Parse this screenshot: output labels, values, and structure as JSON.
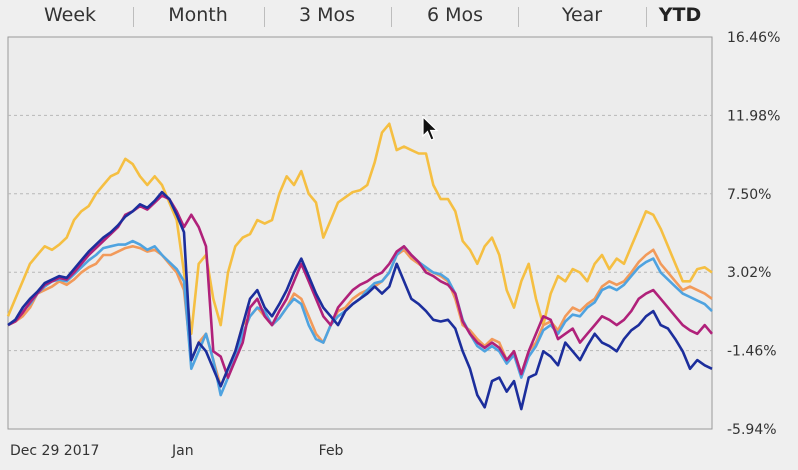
{
  "tabs": [
    {
      "label": "Week",
      "active": false
    },
    {
      "label": "Month",
      "active": false
    },
    {
      "label": "3 Mos",
      "active": false
    },
    {
      "label": "6 Mos",
      "active": false
    },
    {
      "label": "Year",
      "active": false
    },
    {
      "label": "YTD",
      "active": true
    }
  ],
  "chart_data": {
    "type": "line",
    "ylim": [
      -5.94,
      16.46
    ],
    "yticks": [
      "16.46%",
      "11.98%",
      "7.50%",
      "3.02%",
      "-1.46%",
      "-5.94%"
    ],
    "ytick_values": [
      16.46,
      11.98,
      7.5,
      3.02,
      -1.46,
      -5.94
    ],
    "xticks": [
      "Dec 29 2017",
      "Jan",
      "Feb"
    ],
    "xtick_index": [
      0,
      24,
      44
    ],
    "grid": "horizontal dashed",
    "series": [
      {
        "color": "#f5bf42",
        "values": [
          0.5,
          1.5,
          2.5,
          3.5,
          4,
          4.5,
          4.3,
          4.6,
          5,
          6,
          6.5,
          6.8,
          7.5,
          8,
          8.5,
          8.7,
          9.5,
          9.2,
          8.5,
          8,
          8.5,
          8,
          7,
          6,
          3,
          -0.5,
          3.5,
          4,
          1.5,
          0,
          3,
          4.5,
          5,
          5.2,
          6,
          5.8,
          6,
          7.5,
          8.5,
          8,
          8.8,
          7.5,
          7,
          5,
          6,
          7,
          7.3,
          7.6,
          7.7,
          8,
          9.3,
          11,
          11.5,
          10,
          10.2,
          10,
          9.8,
          9.8,
          8,
          7.2,
          7.2,
          6.5,
          4.8,
          4.3,
          3.5,
          4.5,
          5,
          4,
          2,
          1,
          2.5,
          3.5,
          1.5,
          0,
          1.8,
          2.8,
          2.5,
          3.2,
          3,
          2.5,
          3.5,
          4,
          3.2,
          3.8,
          3.5,
          4.5,
          5.5,
          6.5,
          6.3,
          5.5,
          4.5,
          3.5,
          2.5,
          2.5,
          3.2,
          3.3,
          3
        ],
        "smooth": false
      },
      {
        "color": "#f29a5a",
        "values": [
          0,
          0.2,
          0.5,
          1,
          1.8,
          2,
          2.2,
          2.5,
          2.3,
          2.6,
          3,
          3.3,
          3.5,
          4,
          4,
          4.2,
          4.4,
          4.5,
          4.4,
          4.2,
          4.3,
          4,
          3.5,
          3,
          2,
          -2,
          -1,
          -0.5,
          -2,
          -3.5,
          -2.5,
          -1.5,
          0,
          0.5,
          1,
          0.5,
          0,
          0.4,
          1,
          1.8,
          1.5,
          0.5,
          -0.5,
          -1,
          0,
          0.8,
          1,
          1.5,
          1.8,
          2,
          2.2,
          2.5,
          3,
          4,
          4.3,
          3.8,
          3.5,
          3.2,
          3,
          2.8,
          2.5,
          1.5,
          0,
          -0.3,
          -0.8,
          -1.2,
          -0.8,
          -1,
          -2,
          -1.5,
          -2.8,
          -1.5,
          -1,
          0,
          0.2,
          -0.3,
          0.5,
          1,
          0.8,
          1.2,
          1.5,
          2.2,
          2.5,
          2.3,
          2.5,
          3,
          3.6,
          4,
          4.3,
          3.5,
          3,
          2.5,
          2,
          2.2,
          2,
          1.8,
          1.5
        ],
        "smooth": false
      },
      {
        "color": "#4fa3e0",
        "values": [
          0,
          0.3,
          0.8,
          1.2,
          1.8,
          2.2,
          2.5,
          2.6,
          2.5,
          2.9,
          3.3,
          3.7,
          4,
          4.4,
          4.5,
          4.6,
          4.6,
          4.8,
          4.6,
          4.3,
          4.5,
          4,
          3.6,
          3.2,
          2.5,
          -2.5,
          -1.5,
          -0.5,
          -2,
          -4,
          -3,
          -1.8,
          -0.5,
          0.5,
          1,
          0.8,
          0,
          0.4,
          1,
          1.5,
          1.2,
          0,
          -0.8,
          -1,
          0,
          0.5,
          0.8,
          1.2,
          1.5,
          2,
          2.4,
          2.5,
          3,
          4,
          4.5,
          4,
          3.6,
          3.3,
          3,
          2.9,
          2.6,
          1.8,
          0.3,
          -0.5,
          -1.2,
          -1.5,
          -1.2,
          -1.5,
          -2.2,
          -1.7,
          -3,
          -1.8,
          -1.2,
          -0.3,
          0,
          -0.5,
          0.2,
          0.6,
          0.5,
          1,
          1.3,
          2,
          2.2,
          2,
          2.3,
          2.8,
          3.3,
          3.6,
          3.8,
          3,
          2.6,
          2.2,
          1.8,
          1.6,
          1.4,
          1.2,
          0.8
        ],
        "smooth": false
      },
      {
        "color": "#b0217a",
        "values": [
          0,
          0.2,
          0.7,
          1.3,
          1.8,
          2.3,
          2.5,
          2.7,
          2.6,
          3,
          3.5,
          4,
          4.4,
          4.8,
          5.2,
          5.6,
          6.3,
          6.5,
          6.8,
          6.6,
          7,
          7.4,
          7.2,
          6.5,
          5.6,
          6.3,
          5.6,
          4.5,
          -1.5,
          -1.8,
          -3,
          -2,
          -1,
          1,
          1.5,
          0.5,
          0,
          0.8,
          1.5,
          2.5,
          3.5,
          2.5,
          1.5,
          0.5,
          0,
          1,
          1.5,
          2,
          2.3,
          2.5,
          2.8,
          3,
          3.5,
          4.2,
          4.5,
          4,
          3.6,
          3,
          2.8,
          2.5,
          2.3,
          1.8,
          0.2,
          -0.5,
          -1,
          -1.3,
          -1,
          -1.3,
          -2,
          -1.5,
          -2.8,
          -1.5,
          -0.5,
          0.5,
          0.3,
          -0.8,
          -0.5,
          -0.2,
          -1,
          -0.5,
          0,
          0.5,
          0.3,
          0,
          0.3,
          0.8,
          1.5,
          1.8,
          2,
          1.5,
          1,
          0.5,
          0,
          -0.3,
          -0.5,
          0,
          -0.5
        ],
        "smooth": false
      },
      {
        "color": "#1c2e9c",
        "values": [
          0,
          0.3,
          1,
          1.5,
          1.9,
          2.4,
          2.6,
          2.8,
          2.7,
          3.2,
          3.7,
          4.2,
          4.6,
          5,
          5.3,
          5.7,
          6.2,
          6.5,
          6.9,
          6.7,
          7.1,
          7.6,
          7.2,
          6.3,
          5.3,
          -2,
          -1,
          -1.5,
          -2.5,
          -3.5,
          -2.5,
          -1.5,
          0,
          1.5,
          2,
          1,
          0.5,
          1.2,
          2,
          3,
          3.8,
          2.8,
          1.8,
          1,
          0.5,
          0,
          0.8,
          1.2,
          1.5,
          1.8,
          2.2,
          1.8,
          2.2,
          3.5,
          2.5,
          1.5,
          1.2,
          0.8,
          0.3,
          0.2,
          0.3,
          -0.2,
          -1.5,
          -2.5,
          -4,
          -4.7,
          -3.2,
          -3,
          -3.8,
          -3.2,
          -4.8,
          -3,
          -2.8,
          -1.5,
          -1.8,
          -2.3,
          -1,
          -1.5,
          -2,
          -1.2,
          -0.5,
          -1,
          -1.2,
          -1.5,
          -0.8,
          -0.3,
          0,
          0.5,
          0.8,
          0,
          -0.2,
          -0.8,
          -1.5,
          -2.5,
          -2,
          -2.3,
          -2.5
        ],
        "smooth": false
      }
    ]
  }
}
